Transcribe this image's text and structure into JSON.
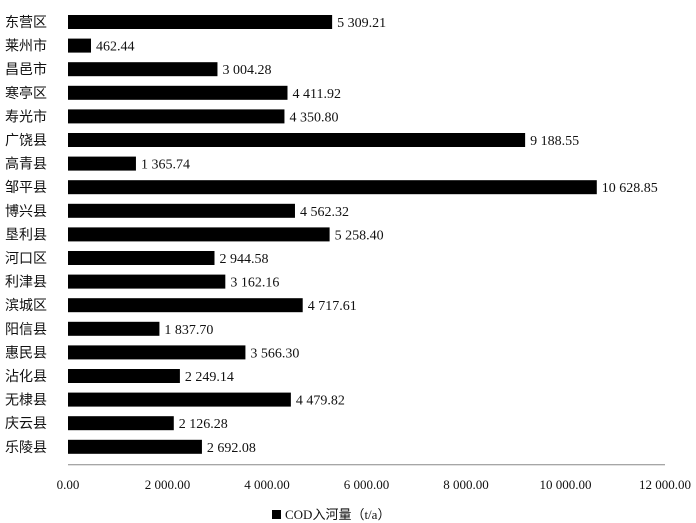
{
  "chart_data": {
    "type": "bar",
    "orientation": "horizontal",
    "categories": [
      "东营区",
      "莱州市",
      "昌邑市",
      "寒亭区",
      "寿光市",
      "广饶县",
      "高青县",
      "邹平县",
      "博兴县",
      "垦利县",
      "河口区",
      "利津县",
      "滨城区",
      "阳信县",
      "惠民县",
      "沾化县",
      "无棣县",
      "庆云县",
      "乐陵县"
    ],
    "series": [
      {
        "name": "COD入河量（t/a）",
        "values": [
          5309.21,
          462.44,
          3004.28,
          4411.92,
          4350.8,
          9188.55,
          1365.74,
          10628.85,
          4562.32,
          5258.4,
          2944.58,
          3162.16,
          4717.61,
          1837.7,
          3566.3,
          2249.14,
          4479.82,
          2126.28,
          2692.08
        ],
        "labels": [
          "5 309.21",
          "462.44",
          "3 004.28",
          "4 411.92",
          "4 350.80",
          "9 188.55",
          "1 365.74",
          "10 628.85",
          "4 562.32",
          "5 258.40",
          "2 944.58",
          "3 162.16",
          "4 717.61",
          "1 837.70",
          "3 566.30",
          "2 249.14",
          "4 479.82",
          "2 126.28",
          "2 692.08"
        ]
      }
    ],
    "xlim": [
      0,
      12000
    ],
    "xticks": [
      0,
      2000,
      4000,
      6000,
      8000,
      10000,
      12000
    ],
    "xtick_labels": [
      "0.00",
      "2 000.00",
      "4 000.00",
      "6 000.00",
      "8 000.00",
      "10 000.00",
      "12 000.00"
    ],
    "grid": false,
    "legend_position": "bottom",
    "bar_color": "#000000"
  }
}
